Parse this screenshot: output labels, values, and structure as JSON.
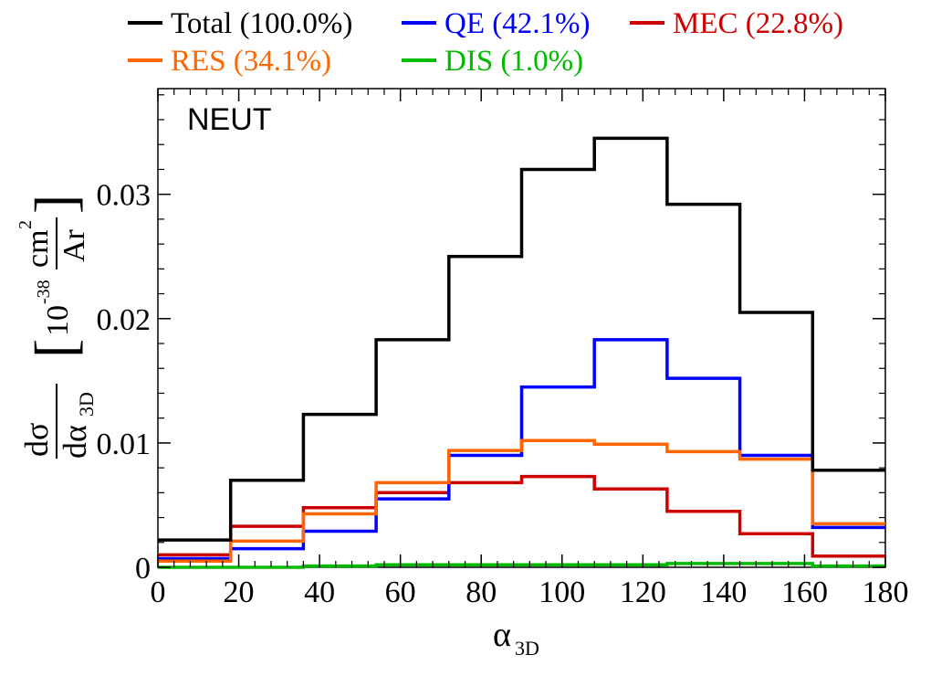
{
  "chart_data": {
    "type": "line",
    "annotation": "NEUT",
    "xlabel": "α",
    "xlabel_sub": "3D",
    "ylabel": {
      "numerator": "dσ",
      "denominator": "dα",
      "denominator_sub": "3D",
      "unit_prefix": "10",
      "unit_exponent": "-38",
      "unit_numerator": "cm",
      "unit_numerator_exp": "2",
      "unit_denominator": "Ar"
    },
    "xlim": [
      0,
      180
    ],
    "ylim": [
      0,
      0.0385
    ],
    "xticks": [
      0,
      20,
      40,
      60,
      80,
      100,
      120,
      140,
      160,
      180
    ],
    "xtick_labels": [
      "0",
      "20",
      "40",
      "60",
      "80",
      "100",
      "120",
      "140",
      "160",
      "180"
    ],
    "yticks": [
      0,
      0.01,
      0.02,
      0.03
    ],
    "ytick_labels": [
      "0",
      "0.01",
      "0.02",
      "0.03"
    ],
    "grid": false,
    "legend_position": "top-outside",
    "bin_edges": [
      0,
      18,
      36,
      54,
      72,
      90,
      108,
      126,
      144,
      162,
      180
    ],
    "series": [
      {
        "name": "Total (100.0%)",
        "color": "#000000",
        "values": [
          0.0022,
          0.007,
          0.0123,
          0.0183,
          0.025,
          0.032,
          0.0345,
          0.0292,
          0.0205,
          0.0078
        ]
      },
      {
        "name": "QE (42.1%)",
        "color": "#0000ff",
        "values": [
          0.0007,
          0.0015,
          0.0029,
          0.0055,
          0.009,
          0.0145,
          0.0183,
          0.0152,
          0.009,
          0.0032
        ]
      },
      {
        "name": "MEC (22.8%)",
        "color": "#cc0000",
        "values": [
          0.001,
          0.0033,
          0.0048,
          0.006,
          0.0068,
          0.0073,
          0.0063,
          0.0045,
          0.0027,
          0.0009
        ]
      },
      {
        "name": "RES (34.1%)",
        "color": "#ff6600",
        "values": [
          0.0005,
          0.0021,
          0.0043,
          0.0068,
          0.0094,
          0.0102,
          0.0099,
          0.0093,
          0.0087,
          0.0035
        ]
      },
      {
        "name": "DIS (1.0%)",
        "color": "#00bb00",
        "values": [
          0.0,
          0.0,
          0.0001,
          0.0002,
          0.0002,
          0.0002,
          0.0002,
          0.0003,
          0.0003,
          0.0001
        ]
      }
    ]
  }
}
